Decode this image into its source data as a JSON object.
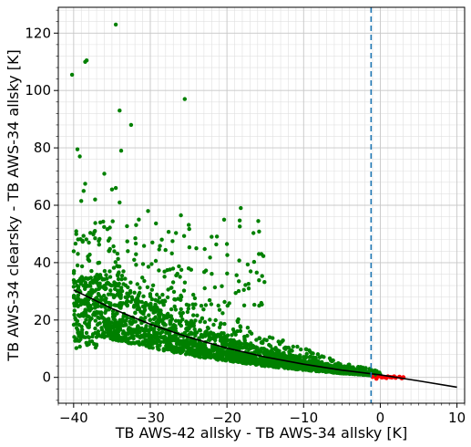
{
  "chart_data": {
    "type": "scatter",
    "xlabel": "TB AWS-42 allsky - TB AWS-34 allsky [K]",
    "ylabel": "TB AWS-34 clearsky - TB AWS-34 allsky [K]",
    "xlim": [
      -42,
      11
    ],
    "ylim": [
      -9,
      129
    ],
    "x_ticks": [
      -40,
      -30,
      -20,
      -10,
      0,
      10
    ],
    "x_tick_labels": [
      "−40",
      "−30",
      "−20",
      "−10",
      "0",
      "10"
    ],
    "y_ticks": [
      0,
      20,
      40,
      60,
      80,
      100,
      120
    ],
    "y_tick_labels": [
      "0",
      "20",
      "40",
      "60",
      "80",
      "100",
      "120"
    ],
    "grid": true,
    "minor_grid": true,
    "colors": {
      "scatter": "#008000",
      "highlight": "#ff0000",
      "fit": "#000000",
      "threshold": "#1f77b4"
    },
    "threshold_x": -1.2,
    "fit_curve": {
      "x": [
        -40,
        -35,
        -30,
        -25,
        -20,
        -15,
        -10,
        -5,
        0,
        5,
        10
      ],
      "y": [
        30.5,
        24.0,
        18.5,
        14.0,
        10.2,
        7.1,
        4.6,
        2.5,
        0.9,
        -1.2,
        -3.4
      ]
    },
    "scatter_outliers": [
      [
        -40.2,
        105.5
      ],
      [
        -38.5,
        110.0
      ],
      [
        -38.3,
        110.5
      ],
      [
        -34.5,
        123.0
      ],
      [
        -25.5,
        97.0
      ],
      [
        -34.0,
        93.0
      ],
      [
        -32.5,
        88.0
      ],
      [
        -39.5,
        79.5
      ],
      [
        -39.2,
        77.0
      ],
      [
        -33.8,
        79.0
      ],
      [
        -36.0,
        71.0
      ],
      [
        -38.5,
        67.5
      ],
      [
        -38.7,
        65.0
      ],
      [
        -35.0,
        65.5
      ],
      [
        -34.5,
        66.0
      ],
      [
        -18.2,
        59.0
      ],
      [
        -39.0,
        61.5
      ],
      [
        -37.2,
        62.0
      ],
      [
        -34.0,
        61.0
      ],
      [
        -30.3,
        58.0
      ],
      [
        -31.5,
        55.0
      ],
      [
        -26.0,
        56.5
      ],
      [
        -22.0,
        49.0
      ],
      [
        -28.5,
        48.0
      ],
      [
        -20.0,
        46.5
      ],
      [
        -15.5,
        43.0
      ],
      [
        -24.0,
        45.0
      ]
    ],
    "highlight_points": [
      [
        -1.0,
        0.2
      ],
      [
        -0.2,
        0.4
      ],
      [
        0.5,
        0.1
      ],
      [
        1.0,
        0.3
      ],
      [
        1.5,
        0.0
      ],
      [
        2.0,
        -0.1
      ],
      [
        2.5,
        0.2
      ],
      [
        3.0,
        0.0
      ],
      [
        -0.5,
        -0.4
      ],
      [
        0.8,
        -0.2
      ],
      [
        1.8,
        0.3
      ],
      [
        2.8,
        -0.3
      ],
      [
        0.2,
        0.0
      ],
      [
        1.3,
        0.1
      ]
    ]
  }
}
